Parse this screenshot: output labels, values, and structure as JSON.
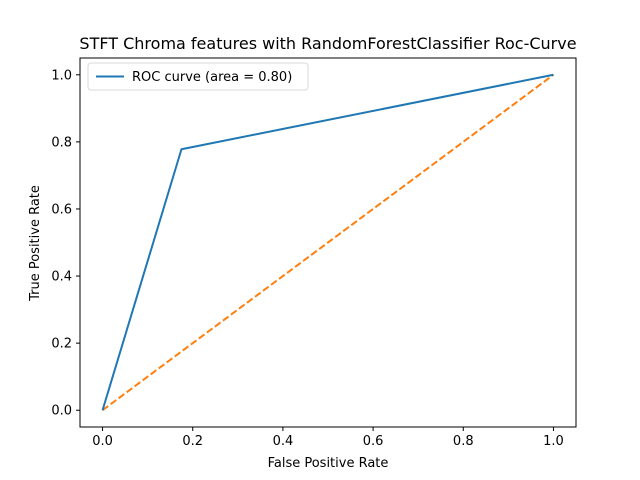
{
  "chart_data": {
    "type": "line",
    "title": "STFT Chroma features with RandomForestClassifier Roc-Curve",
    "xlabel": "False Positive Rate",
    "ylabel": "True Positive Rate",
    "xlim": [
      -0.05,
      1.05
    ],
    "ylim": [
      -0.05,
      1.05
    ],
    "xticks": [
      0.0,
      0.2,
      0.4,
      0.6,
      0.8,
      1.0
    ],
    "yticks": [
      0.0,
      0.2,
      0.4,
      0.6,
      0.8,
      1.0
    ],
    "xtick_labels": [
      "0.0",
      "0.2",
      "0.4",
      "0.6",
      "0.8",
      "1.0"
    ],
    "ytick_labels": [
      "0.0",
      "0.2",
      "0.4",
      "0.6",
      "0.8",
      "1.0"
    ],
    "grid": false,
    "legend_position": "top-left",
    "series": [
      {
        "name": "ROC curve (area = 0.80)",
        "x": [
          0.0,
          0.175,
          1.0
        ],
        "y": [
          0.0,
          0.778,
          1.0
        ],
        "color": "#1f77b4",
        "linestyle": "solid"
      },
      {
        "x": [
          0.0,
          1.0
        ],
        "y": [
          0.0,
          1.0
        ],
        "color": "#ff7f0e",
        "linestyle": "dashed"
      }
    ]
  }
}
